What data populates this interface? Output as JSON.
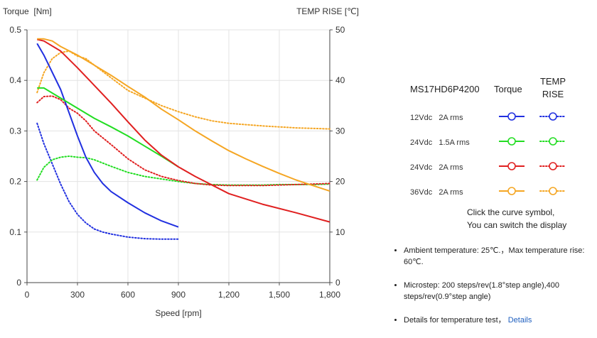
{
  "chart_data": {
    "type": "line",
    "y_left_label": "Torque  [Nm]",
    "y_right_label": "TEMP RISE [℃]",
    "x_label": "Speed [rpm]",
    "x_range": [
      0,
      1800
    ],
    "x_ticks": [
      0,
      300,
      600,
      900,
      1200,
      1500,
      1800
    ],
    "x_tick_labels": [
      "0",
      "300",
      "600",
      "900",
      "1,200",
      "1,500",
      "1,800"
    ],
    "y_left_range": [
      0,
      0.5
    ],
    "y_left_ticks": [
      0,
      0.1,
      0.2,
      0.3,
      0.4,
      0.5
    ],
    "y_left_tick_labels": [
      "0",
      "0.1",
      "0.2",
      "0.3",
      "0.4",
      "0.5"
    ],
    "y_right_range": [
      0,
      50
    ],
    "y_right_ticks": [
      0,
      10,
      20,
      30,
      40,
      50
    ],
    "y_right_tick_labels": [
      "0",
      "10",
      "20",
      "30",
      "40",
      "50"
    ],
    "grid": true,
    "series": [
      {
        "name": "12Vdc 2A rms",
        "color": "#2130e0",
        "torque": [
          [
            60,
            0.473
          ],
          [
            100,
            0.45
          ],
          [
            200,
            0.382
          ],
          [
            300,
            0.29
          ],
          [
            350,
            0.248
          ],
          [
            400,
            0.218
          ],
          [
            450,
            0.196
          ],
          [
            500,
            0.18
          ],
          [
            600,
            0.158
          ],
          [
            700,
            0.138
          ],
          [
            800,
            0.122
          ],
          [
            900,
            0.11
          ]
        ],
        "temp_rise": [
          [
            60,
            31.5
          ],
          [
            100,
            27.5
          ],
          [
            150,
            23.5
          ],
          [
            200,
            19.5
          ],
          [
            250,
            16.0
          ],
          [
            300,
            13.5
          ],
          [
            350,
            11.8
          ],
          [
            400,
            10.6
          ],
          [
            450,
            10.0
          ],
          [
            500,
            9.6
          ],
          [
            600,
            9.0
          ],
          [
            700,
            8.7
          ],
          [
            800,
            8.6
          ],
          [
            900,
            8.6
          ]
        ]
      },
      {
        "name": "24Vdc 1.5A rms",
        "color": "#22dd22",
        "torque": [
          [
            60,
            0.385
          ],
          [
            100,
            0.385
          ],
          [
            200,
            0.365
          ],
          [
            300,
            0.345
          ],
          [
            400,
            0.325
          ],
          [
            500,
            0.308
          ],
          [
            600,
            0.29
          ],
          [
            700,
            0.27
          ],
          [
            800,
            0.25
          ],
          [
            900,
            0.229
          ]
        ],
        "temp_rise": [
          [
            60,
            20.3
          ],
          [
            100,
            22.8
          ],
          [
            150,
            24.3
          ],
          [
            200,
            24.8
          ],
          [
            250,
            25.0
          ],
          [
            300,
            24.8
          ],
          [
            350,
            24.7
          ],
          [
            400,
            24.3
          ],
          [
            500,
            23.0
          ],
          [
            600,
            21.8
          ],
          [
            700,
            21.0
          ],
          [
            800,
            20.5
          ],
          [
            900,
            20.0
          ],
          [
            1000,
            19.6
          ],
          [
            1100,
            19.4
          ],
          [
            1200,
            19.3
          ],
          [
            1400,
            19.3
          ],
          [
            1500,
            19.4
          ],
          [
            1600,
            19.4
          ],
          [
            1700,
            19.4
          ],
          [
            1800,
            19.5
          ]
        ]
      },
      {
        "name": "24Vdc 2A rms",
        "color": "#e02020",
        "torque": [
          [
            60,
            0.481
          ],
          [
            100,
            0.478
          ],
          [
            200,
            0.458
          ],
          [
            300,
            0.425
          ],
          [
            400,
            0.39
          ],
          [
            500,
            0.355
          ],
          [
            600,
            0.318
          ],
          [
            700,
            0.282
          ],
          [
            800,
            0.252
          ],
          [
            900,
            0.229
          ],
          [
            1000,
            0.21
          ],
          [
            1200,
            0.176
          ],
          [
            1400,
            0.155
          ],
          [
            1600,
            0.138
          ],
          [
            1800,
            0.12
          ]
        ],
        "temp_rise": [
          [
            60,
            35.6
          ],
          [
            100,
            36.8
          ],
          [
            150,
            36.9
          ],
          [
            200,
            36.2
          ],
          [
            250,
            34.5
          ],
          [
            300,
            33.5
          ],
          [
            350,
            32.0
          ],
          [
            400,
            30.0
          ],
          [
            500,
            27.3
          ],
          [
            600,
            24.5
          ],
          [
            700,
            22.3
          ],
          [
            800,
            21.0
          ],
          [
            900,
            20.2
          ],
          [
            1000,
            19.6
          ],
          [
            1100,
            19.3
          ],
          [
            1200,
            19.2
          ],
          [
            1400,
            19.2
          ],
          [
            1500,
            19.3
          ],
          [
            1600,
            19.4
          ],
          [
            1700,
            19.5
          ],
          [
            1800,
            19.6
          ]
        ]
      },
      {
        "name": "36Vdc 2A rms",
        "color": "#f5a623",
        "torque": [
          [
            60,
            0.482
          ],
          [
            100,
            0.482
          ],
          [
            150,
            0.478
          ],
          [
            200,
            0.467
          ],
          [
            300,
            0.45
          ],
          [
            400,
            0.43
          ],
          [
            500,
            0.41
          ],
          [
            600,
            0.388
          ],
          [
            700,
            0.367
          ],
          [
            800,
            0.343
          ],
          [
            900,
            0.322
          ],
          [
            1000,
            0.3
          ],
          [
            1100,
            0.28
          ],
          [
            1200,
            0.261
          ],
          [
            1300,
            0.245
          ],
          [
            1400,
            0.23
          ],
          [
            1500,
            0.216
          ],
          [
            1600,
            0.203
          ],
          [
            1700,
            0.192
          ],
          [
            1800,
            0.181
          ]
        ],
        "temp_rise": [
          [
            60,
            37.6
          ],
          [
            100,
            41.5
          ],
          [
            150,
            44.3
          ],
          [
            200,
            45.5
          ],
          [
            250,
            45.8
          ],
          [
            300,
            44.8
          ],
          [
            350,
            44.3
          ],
          [
            400,
            43.0
          ],
          [
            500,
            40.5
          ],
          [
            600,
            38.0
          ],
          [
            700,
            36.5
          ],
          [
            800,
            35.0
          ],
          [
            900,
            33.8
          ],
          [
            1000,
            32.8
          ],
          [
            1100,
            32.0
          ],
          [
            1200,
            31.5
          ],
          [
            1400,
            31.0
          ],
          [
            1500,
            30.8
          ],
          [
            1600,
            30.6
          ],
          [
            1700,
            30.5
          ],
          [
            1800,
            30.4
          ]
        ]
      }
    ]
  },
  "legend": {
    "model": "MS17HD6P4200",
    "col_torque": "Torque",
    "col_temp_line1": "TEMP",
    "col_temp_line2": "RISE",
    "rows": [
      {
        "label": "12Vdc   2A rms",
        "color": "#2130e0"
      },
      {
        "label": "24Vdc   1.5A rms",
        "color": "#22dd22"
      },
      {
        "label": "24Vdc   2A rms",
        "color": "#e02020"
      },
      {
        "label": "36Vdc   2A rms",
        "color": "#f5a623"
      }
    ]
  },
  "hint": {
    "line1": "Click the curve symbol,",
    "line2": "You can switch the display"
  },
  "notes": {
    "ambient": "Ambient temperature: 25℃.，Max temperature rise: 60℃.",
    "microstep": "Microstep: 200 steps/rev(1.8°step angle),400 steps/rev(0.9°step angle)",
    "details_prefix": "Details for temperature test，",
    "details_link": "Details"
  }
}
